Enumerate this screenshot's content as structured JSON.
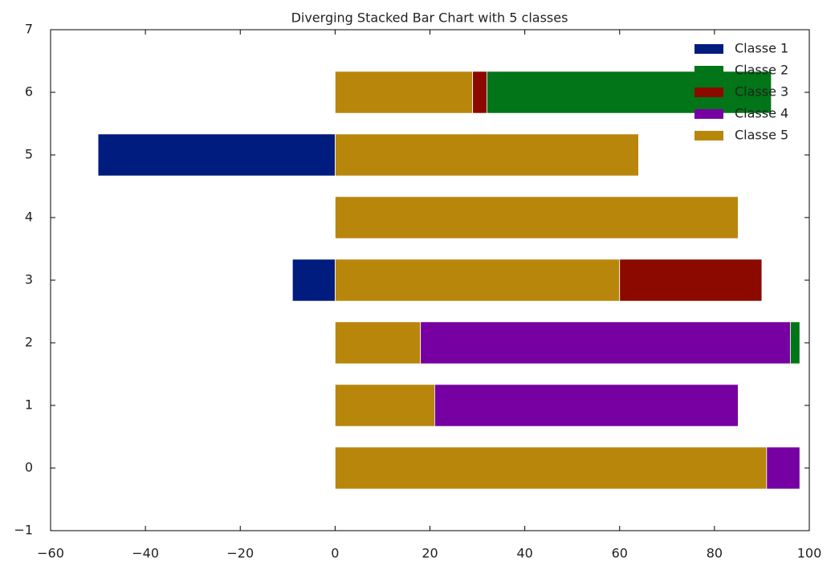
{
  "chart_data": {
    "type": "stacked-barh",
    "title": "Diverging Stacked Bar Chart with 5 classes",
    "y": [
      0,
      1,
      2,
      3,
      4,
      5,
      6
    ],
    "series": [
      {
        "name": "Classe 1",
        "color": "#001c7f",
        "values": [
          0,
          0,
          0,
          -9,
          0,
          -50,
          0
        ]
      },
      {
        "name": "Classe 2",
        "color": "#017517",
        "values": [
          0,
          0,
          2,
          0,
          0,
          0,
          60
        ]
      },
      {
        "name": "Classe 3",
        "color": "#8c0900",
        "values": [
          0,
          0,
          0,
          30,
          0,
          0,
          3
        ]
      },
      {
        "name": "Classe 4",
        "color": "#7600a1",
        "values": [
          7,
          64,
          78,
          0,
          0,
          0,
          0
        ]
      },
      {
        "name": "Classe 5",
        "color": "#b8860b",
        "values": [
          91,
          21,
          18,
          60,
          85,
          64,
          29
        ]
      }
    ],
    "xlim": [
      -60,
      100
    ],
    "xticks": [
      {
        "value": -60,
        "label": "−60"
      },
      {
        "value": -40,
        "label": "−40"
      },
      {
        "value": -20,
        "label": "−20"
      },
      0,
      20,
      40,
      60,
      80,
      100
    ],
    "ylim": [
      -1,
      7
    ],
    "yticks": [
      {
        "value": -1,
        "label": "−1"
      },
      0,
      1,
      2,
      3,
      4,
      5,
      6,
      7
    ],
    "legend": "upper right",
    "grid": false
  }
}
